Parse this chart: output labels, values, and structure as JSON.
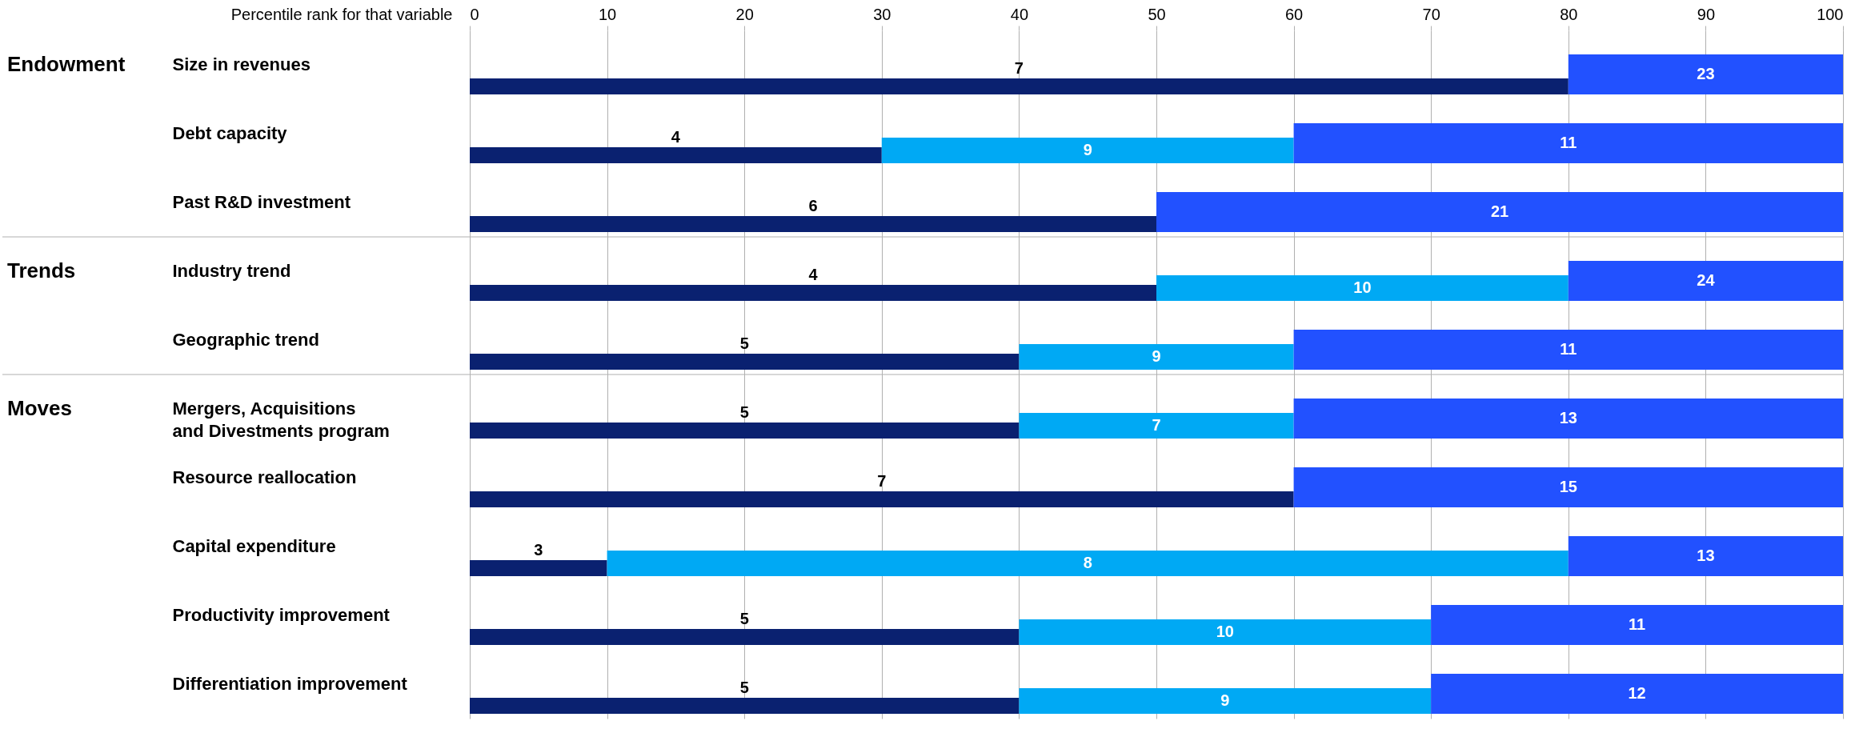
{
  "chart_data": {
    "type": "bar",
    "orientation": "horizontal",
    "stacked": true,
    "xlabel": "Percentile rank for that variable",
    "categories": [
      "Size in revenues",
      "Debt capacity",
      "Past R&D investment",
      "Industry trend",
      "Geographic trend",
      "Mergers, Acquisitions\nand Divestments program",
      "Resource reallocation",
      "Capital expenditure",
      "Productivity improvement",
      "Differentiation improvement"
    ],
    "series": [
      {
        "color": "#0a2170",
        "values": [
          80,
          30,
          50,
          50,
          40,
          40,
          60,
          10,
          40,
          40
        ]
      },
      {
        "color": "#00a9f4",
        "values": [
          null,
          30,
          null,
          30,
          20,
          20,
          null,
          70,
          30,
          30
        ]
      },
      {
        "color": "#2251ff",
        "values": [
          20,
          40,
          50,
          20,
          40,
          40,
          40,
          20,
          30,
          30
        ]
      }
    ],
    "annotations": [
      "Endowment",
      "Trends",
      "Moves",
      {
        "text": "7",
        "x": 40,
        "y": "Size in revenues"
      },
      {
        "text": "23",
        "x": 90,
        "y": "Size in revenues"
      },
      {
        "text": "4",
        "x": 15,
        "y": "Debt capacity"
      },
      {
        "text": "9",
        "x": 45,
        "y": "Debt capacity"
      },
      {
        "text": "11",
        "x": 80,
        "y": "Debt capacity"
      },
      {
        "text": "6",
        "x": 25,
        "y": "Past R&D investment"
      },
      {
        "text": "21",
        "x": 75,
        "y": "Past R&D investment"
      },
      {
        "text": "4",
        "x": 25,
        "y": "Industry trend"
      },
      {
        "text": "10",
        "x": 65,
        "y": "Industry trend"
      },
      {
        "text": "24",
        "x": 90,
        "y": "Industry trend"
      },
      {
        "text": "5",
        "x": 20,
        "y": "Geographic trend"
      },
      {
        "text": "9",
        "x": 50,
        "y": "Geographic trend"
      },
      {
        "text": "11",
        "x": 80,
        "y": "Geographic trend"
      },
      {
        "text": "5",
        "x": 20,
        "y": "Mergers, Acquisitions\nand Divestments program"
      },
      {
        "text": "7",
        "x": 50,
        "y": "Mergers, Acquisitions\nand Divestments program"
      },
      {
        "text": "13",
        "x": 80,
        "y": "Mergers, Acquisitions\nand Divestments program"
      },
      {
        "text": "7",
        "x": 30,
        "y": "Resource reallocation"
      },
      {
        "text": "15",
        "x": 80,
        "y": "Resource reallocation"
      },
      {
        "text": "3",
        "x": 5,
        "y": "Capital expenditure"
      },
      {
        "text": "8",
        "x": 45,
        "y": "Capital expenditure"
      },
      {
        "text": "13",
        "x": 90,
        "y": "Capital expenditure"
      },
      {
        "text": "5",
        "x": 20,
        "y": "Productivity improvement"
      },
      {
        "text": "10",
        "x": 55,
        "y": "Productivity improvement"
      },
      {
        "text": "11",
        "x": 85,
        "y": "Productivity improvement"
      },
      {
        "text": "5",
        "x": 20,
        "y": "Differentiation improvement"
      },
      {
        "text": "9",
        "x": 55,
        "y": "Differentiation improvement"
      },
      {
        "text": "12",
        "x": 85,
        "y": "Differentiation improvement"
      }
    ],
    "xlim": [
      0,
      100
    ],
    "xticks": [
      0,
      10,
      20,
      30,
      40,
      50,
      60,
      70,
      80,
      90,
      100
    ],
    "grid": true
  }
}
